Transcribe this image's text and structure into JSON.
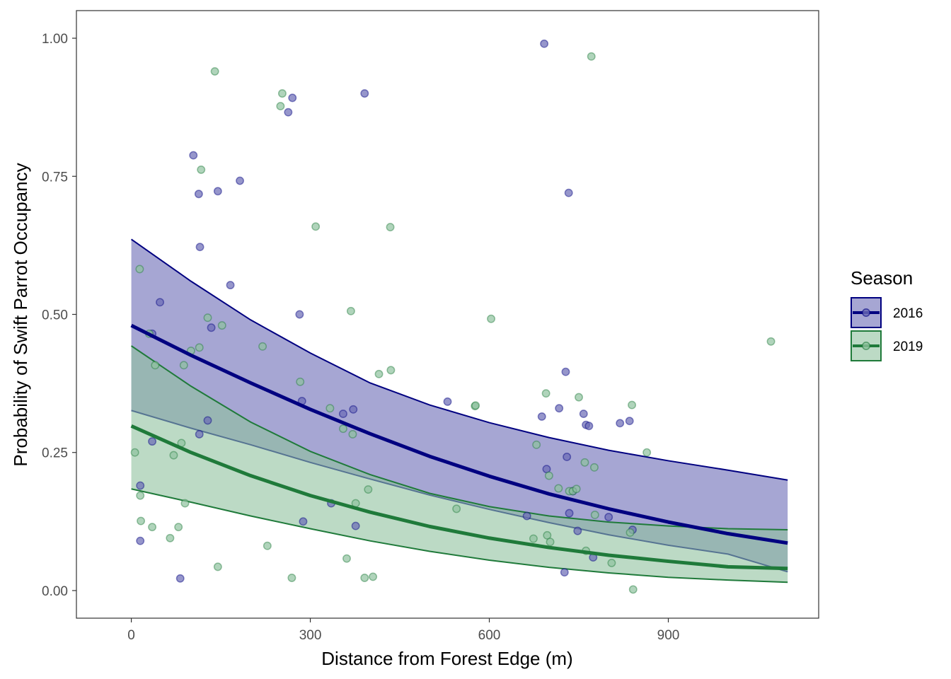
{
  "chart_data": {
    "type": "scatter",
    "title": "",
    "xlabel": "Distance from Forest Edge (m)",
    "ylabel": "Probability of Swift Parrot Occupancy",
    "xlim": [
      -92,
      1152
    ],
    "ylim": [
      -0.05,
      1.05
    ],
    "xticks": [
      0,
      300,
      600,
      900
    ],
    "xtick_labels": [
      "0",
      "300",
      "600",
      "900"
    ],
    "yticks": [
      0,
      0.25,
      0.5,
      0.75,
      1
    ],
    "ytick_labels": [
      "0.00",
      "0.25",
      "0.50",
      "0.75",
      "1.00"
    ],
    "grid": false,
    "legend": {
      "title": "Season",
      "placement": "right",
      "entries": [
        "2016",
        "2019"
      ]
    },
    "series": [
      {
        "name": "2016",
        "color": "#000080",
        "fill": "#6a6ab5",
        "fit": {
          "x": [
            0,
            100,
            200,
            300,
            400,
            500,
            600,
            700,
            800,
            900,
            1000,
            1100
          ],
          "y": [
            0.48,
            0.426,
            0.376,
            0.328,
            0.284,
            0.243,
            0.207,
            0.175,
            0.148,
            0.124,
            0.103,
            0.086
          ],
          "lower": [
            0.326,
            0.294,
            0.264,
            0.232,
            0.202,
            0.173,
            0.147,
            0.123,
            0.101,
            0.082,
            0.066,
            0.034
          ],
          "upper": [
            0.636,
            0.56,
            0.49,
            0.43,
            0.376,
            0.336,
            0.304,
            0.277,
            0.254,
            0.235,
            0.218,
            0.2
          ]
        },
        "points": [
          [
            15,
            0.09
          ],
          [
            15,
            0.19
          ],
          [
            35,
            0.27
          ],
          [
            35,
            0.465
          ],
          [
            48,
            0.522
          ],
          [
            82,
            0.022
          ],
          [
            104,
            0.788
          ],
          [
            113,
            0.718
          ],
          [
            114,
            0.283
          ],
          [
            115,
            0.622
          ],
          [
            128,
            0.308
          ],
          [
            134,
            0.476
          ],
          [
            145,
            0.723
          ],
          [
            166,
            0.553
          ],
          [
            182,
            0.742
          ],
          [
            263,
            0.866
          ],
          [
            270,
            0.892
          ],
          [
            282,
            0.5
          ],
          [
            286,
            0.343
          ],
          [
            288,
            0.125
          ],
          [
            335,
            0.158
          ],
          [
            355,
            0.32
          ],
          [
            372,
            0.328
          ],
          [
            376,
            0.117
          ],
          [
            391,
            0.9
          ],
          [
            530,
            0.342
          ],
          [
            663,
            0.135
          ],
          [
            692,
            0.99
          ],
          [
            696,
            0.22
          ],
          [
            688,
            0.315
          ],
          [
            717,
            0.33
          ],
          [
            726,
            0.033
          ],
          [
            728,
            0.396
          ],
          [
            730,
            0.242
          ],
          [
            733,
            0.72
          ],
          [
            734,
            0.14
          ],
          [
            740,
            0.18
          ],
          [
            748,
            0.108
          ],
          [
            758,
            0.32
          ],
          [
            762,
            0.3
          ],
          [
            767,
            0.298
          ],
          [
            774,
            0.06
          ],
          [
            800,
            0.133
          ],
          [
            819,
            0.303
          ],
          [
            835,
            0.307
          ],
          [
            840,
            0.11
          ]
        ]
      },
      {
        "name": "2019",
        "color": "#1f7a3a",
        "fill": "#8fc29e",
        "fit": {
          "x": [
            0,
            100,
            200,
            300,
            400,
            500,
            600,
            700,
            800,
            900,
            1000,
            1100
          ],
          "y": [
            0.298,
            0.25,
            0.208,
            0.172,
            0.142,
            0.116,
            0.095,
            0.078,
            0.064,
            0.053,
            0.043,
            0.04
          ],
          "lower": [
            0.184,
            0.16,
            0.135,
            0.112,
            0.09,
            0.071,
            0.055,
            0.042,
            0.032,
            0.024,
            0.019,
            0.015
          ],
          "upper": [
            0.443,
            0.37,
            0.305,
            0.252,
            0.21,
            0.176,
            0.152,
            0.135,
            0.124,
            0.117,
            0.112,
            0.11
          ]
        },
        "points": [
          [
            6,
            0.25
          ],
          [
            14,
            0.582
          ],
          [
            15,
            0.172
          ],
          [
            16,
            0.126
          ],
          [
            30,
            0.465
          ],
          [
            35,
            0.115
          ],
          [
            40,
            0.408
          ],
          [
            65,
            0.095
          ],
          [
            71,
            0.245
          ],
          [
            79,
            0.115
          ],
          [
            84,
            0.267
          ],
          [
            88,
            0.408
          ],
          [
            90,
            0.158
          ],
          [
            100,
            0.434
          ],
          [
            114,
            0.44
          ],
          [
            117,
            0.762
          ],
          [
            128,
            0.494
          ],
          [
            140,
            0.94
          ],
          [
            145,
            0.043
          ],
          [
            152,
            0.48
          ],
          [
            220,
            0.442
          ],
          [
            228,
            0.081
          ],
          [
            250,
            0.877
          ],
          [
            253,
            0.9
          ],
          [
            269,
            0.023
          ],
          [
            283,
            0.378
          ],
          [
            309,
            0.659
          ],
          [
            333,
            0.33
          ],
          [
            355,
            0.293
          ],
          [
            361,
            0.058
          ],
          [
            368,
            0.506
          ],
          [
            371,
            0.283
          ],
          [
            376,
            0.158
          ],
          [
            391,
            0.023
          ],
          [
            397,
            0.183
          ],
          [
            405,
            0.025
          ],
          [
            415,
            0.392
          ],
          [
            434,
            0.658
          ],
          [
            435,
            0.399
          ],
          [
            545,
            0.148
          ],
          [
            576,
            0.334
          ],
          [
            577,
            0.335
          ],
          [
            603,
            0.492
          ],
          [
            674,
            0.094
          ],
          [
            679,
            0.264
          ],
          [
            695,
            0.357
          ],
          [
            697,
            0.1
          ],
          [
            700,
            0.208
          ],
          [
            702,
            0.088
          ],
          [
            716,
            0.185
          ],
          [
            734,
            0.18
          ],
          [
            740,
            0.18
          ],
          [
            746,
            0.184
          ],
          [
            750,
            0.35
          ],
          [
            760,
            0.232
          ],
          [
            762,
            0.072
          ],
          [
            771,
            0.967
          ],
          [
            776,
            0.223
          ],
          [
            777,
            0.137
          ],
          [
            805,
            0.05
          ],
          [
            836,
            0.105
          ],
          [
            839,
            0.336
          ],
          [
            841,
            0.002
          ],
          [
            864,
            0.25
          ],
          [
            1072,
            0.451
          ]
        ]
      }
    ]
  }
}
